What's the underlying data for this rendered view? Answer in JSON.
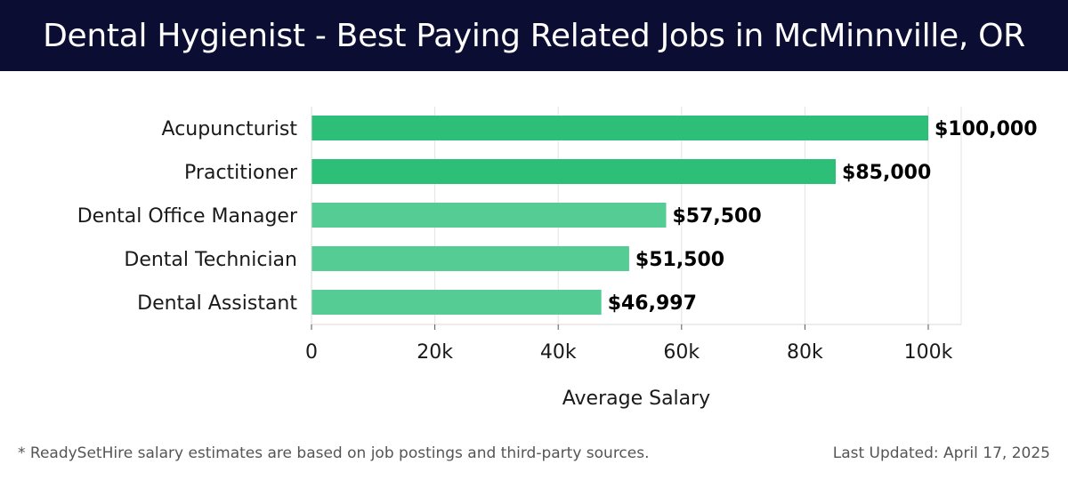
{
  "header": {
    "title": "Dental Hygienist - Best Paying Related Jobs in McMinnville, OR"
  },
  "chart_data": {
    "type": "bar",
    "orientation": "horizontal",
    "title": "Dental Hygienist - Best Paying Related Jobs in McMinnville, OR",
    "xlabel": "Average Salary",
    "ylabel": "",
    "xlim": [
      0,
      105000
    ],
    "ticks": [
      {
        "value": 0,
        "label": "0"
      },
      {
        "value": 20000,
        "label": "20k"
      },
      {
        "value": 40000,
        "label": "40k"
      },
      {
        "value": 60000,
        "label": "60k"
      },
      {
        "value": 80000,
        "label": "80k"
      },
      {
        "value": 100000,
        "label": "100k"
      }
    ],
    "categories": [
      "Acupuncturist",
      "Practitioner",
      "Dental Office Manager",
      "Dental Technician",
      "Dental Assistant"
    ],
    "values": [
      100000,
      85000,
      57500,
      51500,
      46997
    ],
    "value_labels": [
      "$100,000",
      "$85,000",
      "$57,500",
      "$51,500",
      "$46,997"
    ],
    "bar_colors": [
      "#2dbf78",
      "#2dbf78",
      "#55cc93",
      "#55cc93",
      "#55cc93"
    ],
    "grid": true
  },
  "footer": {
    "note": "* ReadySetHire salary estimates are based on job postings and third-party sources.",
    "updated": "Last Updated: April 17, 2025"
  }
}
